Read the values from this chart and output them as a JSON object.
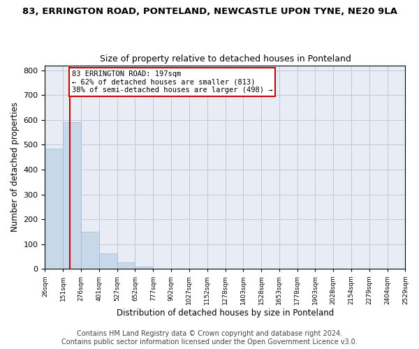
{
  "title1": "83, ERRINGTON ROAD, PONTELAND, NEWCASTLE UPON TYNE, NE20 9LA",
  "title2": "Size of property relative to detached houses in Ponteland",
  "xlabel": "Distribution of detached houses by size in Ponteland",
  "ylabel": "Number of detached properties",
  "bin_labels": [
    "26sqm",
    "151sqm",
    "276sqm",
    "401sqm",
    "527sqm",
    "652sqm",
    "777sqm",
    "902sqm",
    "1027sqm",
    "1152sqm",
    "1278sqm",
    "1403sqm",
    "1528sqm",
    "1653sqm",
    "1778sqm",
    "1903sqm",
    "2028sqm",
    "2154sqm",
    "2279sqm",
    "2404sqm",
    "2529sqm"
  ],
  "bar_heights": [
    483,
    591,
    150,
    62,
    25,
    8,
    0,
    0,
    0,
    0,
    0,
    0,
    0,
    0,
    0,
    0,
    0,
    0,
    0,
    0
  ],
  "bar_color": "#c8d8e8",
  "bar_edge_color": "#a0b8cc",
  "property_line_x": 197,
  "bin_edges": [
    26,
    151,
    276,
    401,
    527,
    652,
    777,
    902,
    1027,
    1152,
    1278,
    1403,
    1528,
    1653,
    1778,
    1903,
    2028,
    2154,
    2279,
    2404,
    2529
  ],
  "annotation_title": "83 ERRINGTON ROAD: 197sqm",
  "annotation_line1": "← 62% of detached houses are smaller (813)",
  "annotation_line2": "38% of semi-detached houses are larger (498) →",
  "annotation_box_color": "#ffffff",
  "annotation_box_edge": "#cc0000",
  "vline_color": "#cc0000",
  "ylim": [
    0,
    820
  ],
  "yticks": [
    0,
    100,
    200,
    300,
    400,
    500,
    600,
    700,
    800
  ],
  "grid_color": "#c0c8d8",
  "background_color": "#e8ecf4",
  "footer1": "Contains HM Land Registry data © Crown copyright and database right 2024.",
  "footer2": "Contains public sector information licensed under the Open Government Licence v3.0.",
  "title1_fontsize": 9.5,
  "title2_fontsize": 9,
  "xlabel_fontsize": 8.5,
  "ylabel_fontsize": 8.5,
  "footer_fontsize": 7
}
